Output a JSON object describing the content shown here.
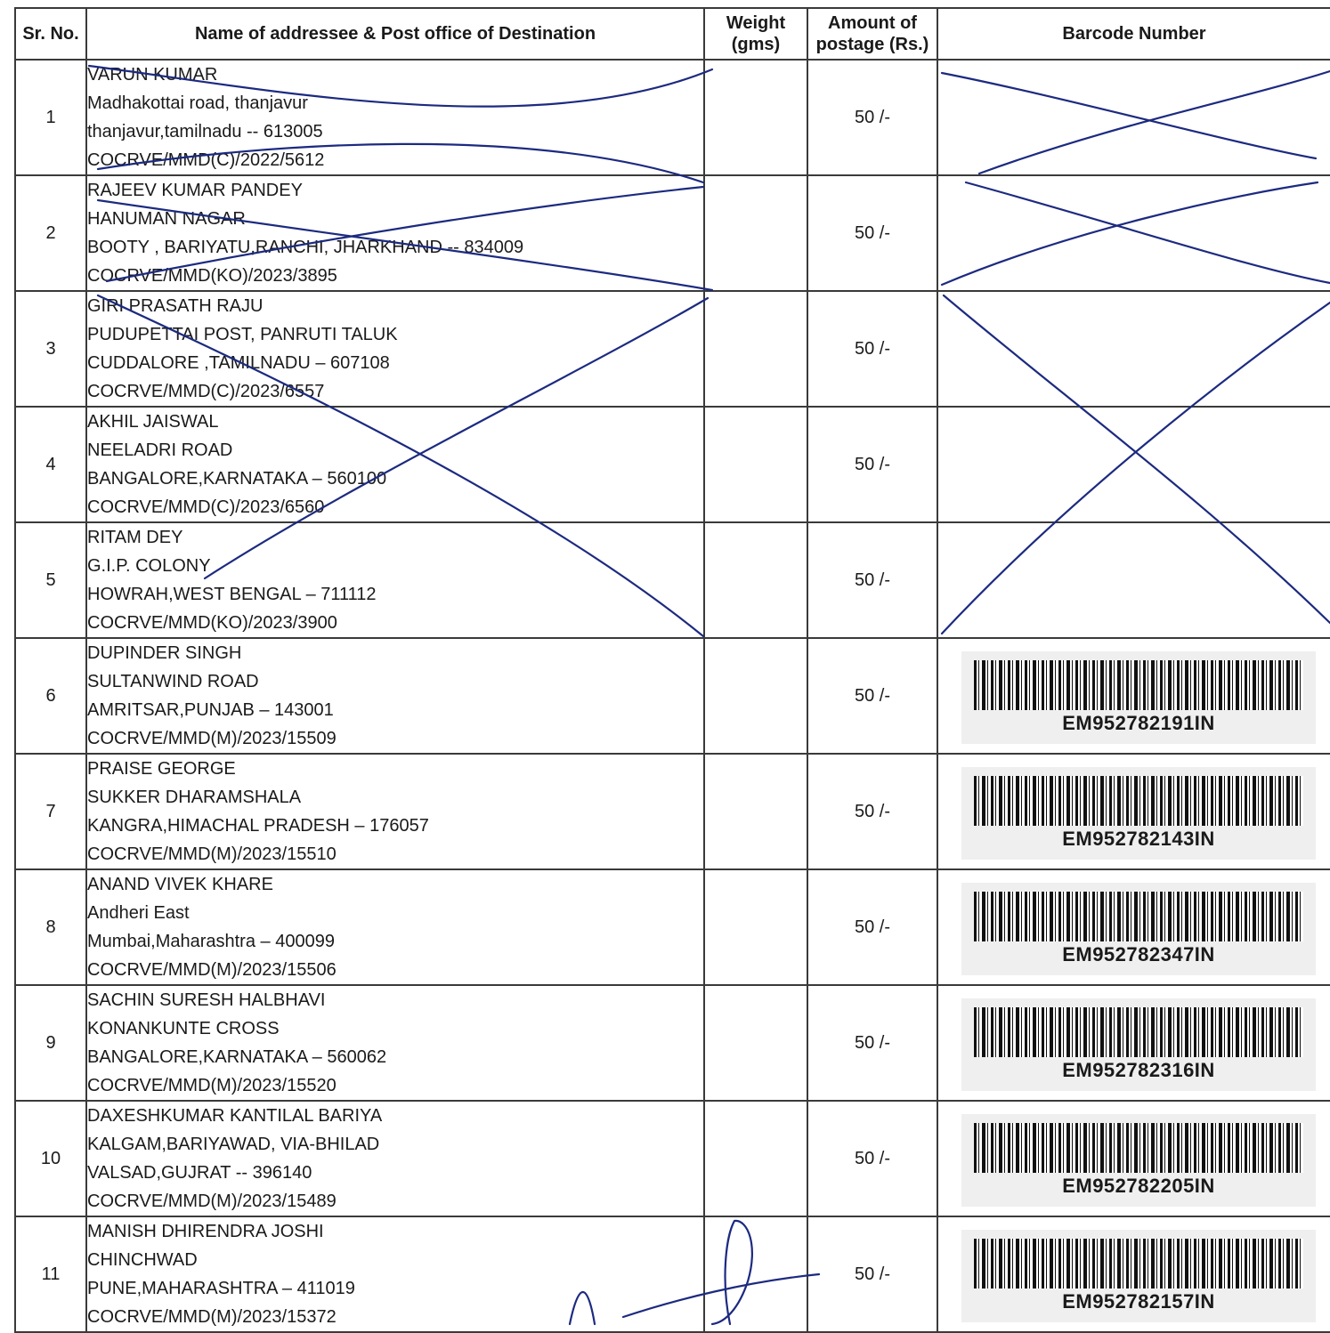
{
  "headers": {
    "sr": "Sr. No.",
    "name": "Name of addressee & Post office of Destination",
    "weight": "Weight (gms)",
    "amount": "Amount of postage (Rs.)",
    "barcode": "Barcode Number"
  },
  "rows": [
    {
      "sr": "1",
      "lines": [
        "VARUN  KUMAR",
        "Madhakottai road, thanjavur",
        "thanjavur,tamilnadu -- 613005",
        "COCRVE/MMD(C)/2022/5612"
      ],
      "amount": "50 /-",
      "barcode": ""
    },
    {
      "sr": "2",
      "lines": [
        "RAJEEV KUMAR  PANDEY",
        "HANUMAN NAGAR",
        "BOOTY , BARIYATU,RANCHI, JHARKHAND -- 834009",
        "COCRVE/MMD(KO)/2023/3895"
      ],
      "amount": "50 /-",
      "barcode": ""
    },
    {
      "sr": "3",
      "lines": [
        "GIRI PRASATH  RAJU",
        "PUDUPETTAI POST, PANRUTI TALUK",
        "CUDDALORE ,TAMILNADU – 607108",
        "COCRVE/MMD(C)/2023/6557"
      ],
      "amount": "50 /-",
      "barcode": ""
    },
    {
      "sr": "4",
      "lines": [
        "AKHIL  JAISWAL",
        "NEELADRI ROAD",
        "BANGALORE,KARNATAKA – 560100",
        "COCRVE/MMD(C)/2023/6560"
      ],
      "amount": "50 /-",
      "barcode": ""
    },
    {
      "sr": "5",
      "lines": [
        "RITAM  DEY",
        "G.I.P. COLONY",
        "HOWRAH,WEST BENGAL – 711112",
        "COCRVE/MMD(KO)/2023/3900"
      ],
      "amount": "50 /-",
      "barcode": ""
    },
    {
      "sr": "6",
      "lines": [
        "DUPINDER  SINGH",
        "SULTANWIND ROAD",
        "AMRITSAR,PUNJAB – 143001",
        "COCRVE/MMD(M)/2023/15509"
      ],
      "amount": "50 /-",
      "barcode": "EM952782191IN"
    },
    {
      "sr": "7",
      "lines": [
        "PRAISE GEORGE",
        "SUKKER DHARAMSHALA",
        "KANGRA,HIMACHAL PRADESH – 176057",
        "COCRVE/MMD(M)/2023/15510"
      ],
      "amount": "50 /-",
      "barcode": "EM952782143IN"
    },
    {
      "sr": "8",
      "lines": [
        "ANAND VIVEK  KHARE",
        "Andheri East",
        "Mumbai,Maharashtra – 400099",
        "COCRVE/MMD(M)/2023/15506"
      ],
      "amount": "50 /-",
      "barcode": "EM952782347IN"
    },
    {
      "sr": "9",
      "lines": [
        "SACHIN SURESH  HALBHAVI",
        "KONANKUNTE CROSS",
        "BANGALORE,KARNATAKA – 560062",
        "COCRVE/MMD(M)/2023/15520"
      ],
      "amount": "50 /-",
      "barcode": "EM952782316IN"
    },
    {
      "sr": "10",
      "lines": [
        "DAXESHKUMAR KANTILAL  BARIYA",
        "KALGAM,BARIYAWAD, VIA-BHILAD",
        "VALSAD,GUJRAT -- 396140",
        "COCRVE/MMD(M)/2023/15489"
      ],
      "amount": "50 /-",
      "barcode": "EM952782205IN"
    },
    {
      "sr": "11",
      "lines": [
        "MANISH DHIRENDRA JOSHI",
        "CHINCHWAD",
        "PUNE,MAHARASHTRA – 411019",
        "COCRVE/MMD(M)/2023/15372"
      ],
      "amount": "50 /-",
      "barcode": "EM952782157IN"
    }
  ],
  "ink_color": "#1c2a80"
}
